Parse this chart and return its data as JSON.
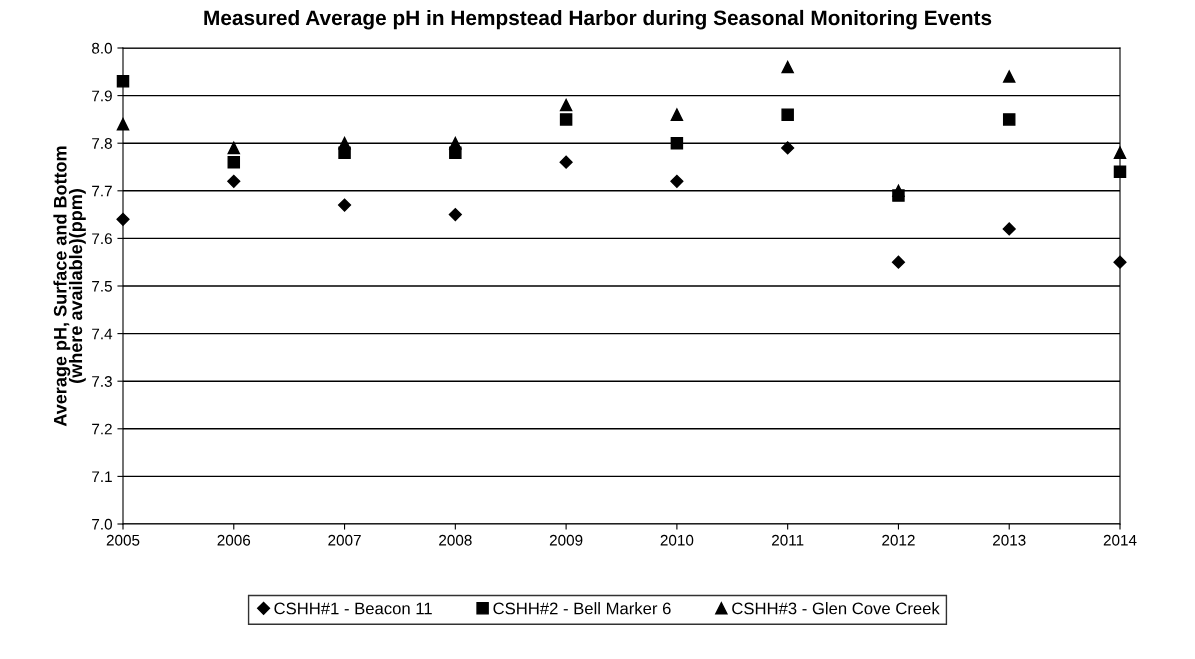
{
  "chart_data": {
    "type": "scatter",
    "title": "Measured Average pH in Hempstead Harbor during Seasonal Monitoring Events",
    "ylabel": "Average pH, Surface and Bottom\n(where available)(ppm)",
    "x": [
      2005,
      2006,
      2007,
      2008,
      2009,
      2010,
      2011,
      2012,
      2013,
      2014
    ],
    "series": [
      {
        "name": "CSHH#1 - Beacon 11",
        "color": "#000000",
        "marker": "diamond",
        "values": [
          7.64,
          7.72,
          7.67,
          7.65,
          7.76,
          7.72,
          7.79,
          7.55,
          7.62,
          7.55
        ]
      },
      {
        "name": "CSHH#2 - Bell Marker 6",
        "color": "#000000",
        "marker": "square",
        "values": [
          7.93,
          7.76,
          7.78,
          7.78,
          7.85,
          7.8,
          7.86,
          7.69,
          7.85,
          7.74
        ]
      },
      {
        "name": "CSHH#3 - Glen Cove Creek",
        "color": "#000000",
        "marker": "triangle",
        "values": [
          7.84,
          7.79,
          7.8,
          7.8,
          7.88,
          7.86,
          7.96,
          7.7,
          7.94,
          7.78
        ]
      }
    ],
    "xlim": [
      2005,
      2014
    ],
    "xticks": [
      2005,
      2006,
      2007,
      2008,
      2009,
      2010,
      2011,
      2012,
      2013,
      2014
    ],
    "ylim": [
      7.0,
      8.0
    ],
    "yticks": [
      {
        "value": 7.0,
        "label": "7.0"
      },
      {
        "value": 7.1,
        "label": "7.1"
      },
      {
        "value": 7.2,
        "label": "7.2"
      },
      {
        "value": 7.3,
        "label": "7.3"
      },
      {
        "value": 7.4,
        "label": "7.4"
      },
      {
        "value": 7.5,
        "label": "7.5"
      },
      {
        "value": 7.6,
        "label": "7.6"
      },
      {
        "value": 7.7,
        "label": "7.7"
      },
      {
        "value": 7.8,
        "label": "7.8"
      },
      {
        "value": 7.9,
        "label": "7.9"
      },
      {
        "value": 8.0,
        "label": "8.0"
      }
    ],
    "grid": "y",
    "legend": "bottom"
  }
}
